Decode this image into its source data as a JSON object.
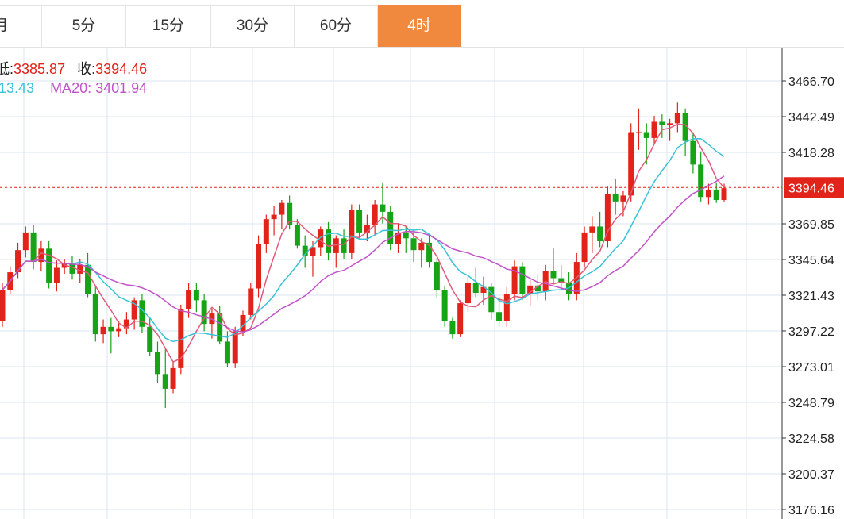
{
  "tabs": [
    {
      "label": "月",
      "active": false
    },
    {
      "label": "5分",
      "active": false
    },
    {
      "label": "15分",
      "active": false
    },
    {
      "label": "30分",
      "active": false
    },
    {
      "label": "60分",
      "active": false
    },
    {
      "label": "4时",
      "active": true
    }
  ],
  "info": {
    "low_label": "低:",
    "low_value": "3385.87",
    "close_label": "收:",
    "close_value": "3394.46",
    "ma10_value": "13.43",
    "ma20_label": "MA20:",
    "ma20_value": "3401.94"
  },
  "colors": {
    "up": "#e2231a",
    "down": "#16a316",
    "ma5": "#e05b7a",
    "ma10": "#39c2d7",
    "ma20": "#c153c9",
    "grid": "#dbe6f0",
    "active_tab": "#f0893d"
  },
  "chart_data": {
    "type": "candlestick",
    "y_ticks": [
      "3466.70",
      "3442.49",
      "3418.28",
      "3394.46",
      "3369.85",
      "3345.64",
      "3321.43",
      "3297.22",
      "3273.01",
      "3248.79",
      "3224.58",
      "3200.37",
      "3176.16"
    ],
    "ylim": [
      3176.16,
      3466.7
    ],
    "current_price": "3394.46",
    "candles": [
      [
        3304,
        3330,
        3300,
        3325
      ],
      [
        3325,
        3341,
        3322,
        3337
      ],
      [
        3337,
        3357,
        3333,
        3352
      ],
      [
        3352,
        3368,
        3347,
        3364
      ],
      [
        3364,
        3369,
        3339,
        3344
      ],
      [
        3344,
        3358,
        3338,
        3353
      ],
      [
        3353,
        3358,
        3326,
        3330
      ],
      [
        3330,
        3345,
        3324,
        3340
      ],
      [
        3340,
        3346,
        3336,
        3343
      ],
      [
        3343,
        3348,
        3332,
        3336
      ],
      [
        3336,
        3346,
        3330,
        3342
      ],
      [
        3342,
        3350,
        3320,
        3322
      ],
      [
        3322,
        3328,
        3290,
        3295
      ],
      [
        3295,
        3305,
        3289,
        3300
      ],
      [
        3300,
        3306,
        3282,
        3297
      ],
      [
        3297,
        3304,
        3293,
        3299
      ],
      [
        3299,
        3310,
        3295,
        3305
      ],
      [
        3305,
        3320,
        3298,
        3318
      ],
      [
        3318,
        3322,
        3296,
        3300
      ],
      [
        3300,
        3306,
        3280,
        3283
      ],
      [
        3283,
        3290,
        3262,
        3268
      ],
      [
        3268,
        3285,
        3245,
        3258
      ],
      [
        3258,
        3276,
        3255,
        3272
      ],
      [
        3272,
        3315,
        3268,
        3312
      ],
      [
        3312,
        3330,
        3306,
        3325
      ],
      [
        3325,
        3330,
        3310,
        3318
      ],
      [
        3318,
        3322,
        3297,
        3302
      ],
      [
        3302,
        3312,
        3292,
        3309
      ],
      [
        3309,
        3314,
        3288,
        3290
      ],
      [
        3290,
        3297,
        3273,
        3275
      ],
      [
        3275,
        3300,
        3272,
        3297
      ],
      [
        3297,
        3311,
        3294,
        3308
      ],
      [
        3308,
        3330,
        3305,
        3326
      ],
      [
        3326,
        3362,
        3320,
        3356
      ],
      [
        3356,
        3376,
        3350,
        3373
      ],
      [
        3373,
        3382,
        3362,
        3376
      ],
      [
        3376,
        3386,
        3366,
        3384
      ],
      [
        3384,
        3389,
        3366,
        3369
      ],
      [
        3369,
        3373,
        3353,
        3355
      ],
      [
        3355,
        3362,
        3340,
        3348
      ],
      [
        3348,
        3358,
        3334,
        3354
      ],
      [
        3354,
        3368,
        3348,
        3366
      ],
      [
        3366,
        3371,
        3345,
        3350
      ],
      [
        3350,
        3362,
        3340,
        3360
      ],
      [
        3360,
        3366,
        3346,
        3350
      ],
      [
        3350,
        3383,
        3346,
        3379
      ],
      [
        3379,
        3383,
        3360,
        3364
      ],
      [
        3364,
        3376,
        3358,
        3369
      ],
      [
        3369,
        3386,
        3362,
        3383
      ],
      [
        3383,
        3398,
        3370,
        3378
      ],
      [
        3378,
        3382,
        3352,
        3356
      ],
      [
        3356,
        3370,
        3350,
        3364
      ],
      [
        3364,
        3368,
        3350,
        3360
      ],
      [
        3360,
        3366,
        3344,
        3352
      ],
      [
        3352,
        3360,
        3340,
        3357
      ],
      [
        3357,
        3362,
        3340,
        3344
      ],
      [
        3344,
        3346,
        3320,
        3325
      ],
      [
        3325,
        3328,
        3300,
        3304
      ],
      [
        3304,
        3306,
        3292,
        3295
      ],
      [
        3295,
        3318,
        3293,
        3316
      ],
      [
        3316,
        3334,
        3310,
        3330
      ],
      [
        3330,
        3340,
        3320,
        3323
      ],
      [
        3323,
        3334,
        3315,
        3327
      ],
      [
        3327,
        3330,
        3305,
        3310
      ],
      [
        3310,
        3318,
        3300,
        3304
      ],
      [
        3304,
        3327,
        3300,
        3322
      ],
      [
        3322,
        3345,
        3318,
        3341
      ],
      [
        3341,
        3344,
        3318,
        3322
      ],
      [
        3322,
        3332,
        3314,
        3328
      ],
      [
        3328,
        3336,
        3318,
        3324
      ],
      [
        3324,
        3342,
        3318,
        3338
      ],
      [
        3338,
        3353,
        3330,
        3333
      ],
      [
        3333,
        3342,
        3325,
        3330
      ],
      [
        3330,
        3337,
        3318,
        3322
      ],
      [
        3322,
        3350,
        3318,
        3344
      ],
      [
        3344,
        3368,
        3340,
        3364
      ],
      [
        3364,
        3375,
        3350,
        3368
      ],
      [
        3368,
        3378,
        3354,
        3358
      ],
      [
        3358,
        3395,
        3354,
        3390
      ],
      [
        3390,
        3400,
        3376,
        3385
      ],
      [
        3385,
        3392,
        3375,
        3389
      ],
      [
        3389,
        3438,
        3385,
        3432
      ],
      [
        3432,
        3448,
        3420,
        3432
      ],
      [
        3432,
        3438,
        3410,
        3428
      ],
      [
        3428,
        3443,
        3424,
        3439
      ],
      [
        3439,
        3444,
        3428,
        3437
      ],
      [
        3437,
        3441,
        3426,
        3438
      ],
      [
        3438,
        3452,
        3432,
        3445
      ],
      [
        3445,
        3448,
        3416,
        3426
      ],
      [
        3426,
        3432,
        3404,
        3410
      ],
      [
        3410,
        3419,
        3385,
        3388
      ],
      [
        3388,
        3397,
        3383,
        3393
      ],
      [
        3393,
        3398,
        3384,
        3386
      ],
      [
        3386,
        3397,
        3385,
        3394
      ]
    ]
  }
}
